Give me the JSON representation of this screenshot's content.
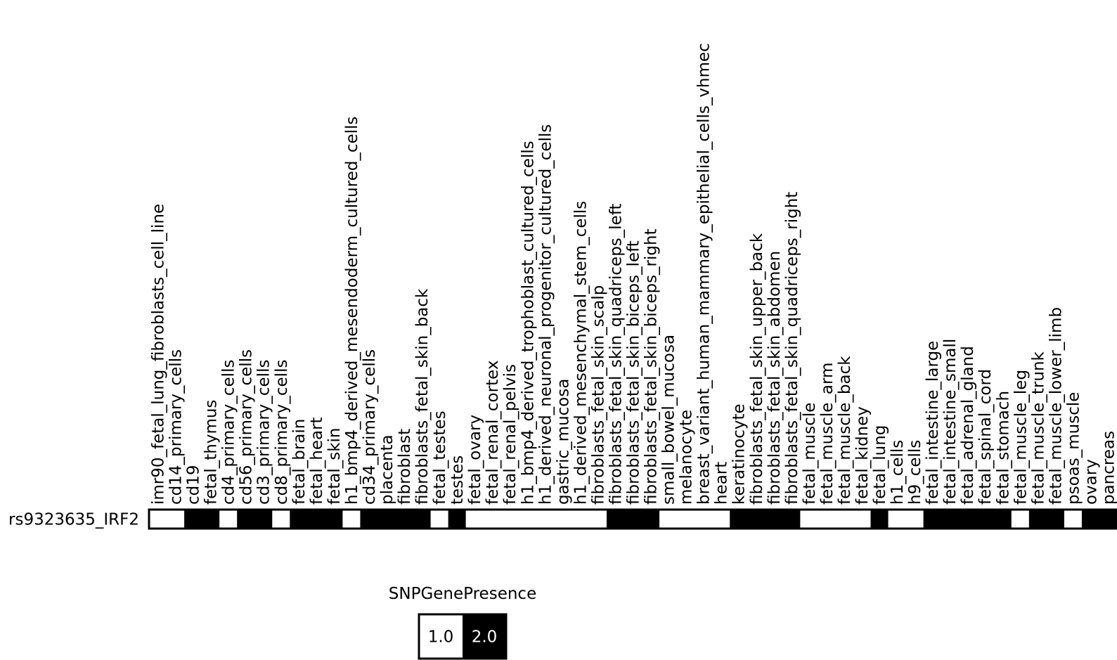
{
  "chart_data": {
    "type": "heatmap",
    "rows": [
      "rs9323635_IRF2"
    ],
    "columns": [
      "imr90_fetal_lung_fibroblasts_cell_line",
      "cd14_primary_cells",
      "cd19",
      "fetal_thymus",
      "cd4_primary_cells",
      "cd56_primary_cells",
      "cd3_primary_cells",
      "cd8_primary_cells",
      "fetal_brain",
      "fetal_heart",
      "fetal_skin",
      "h1_bmp4_derived_mesendoderm_cultured_cells",
      "cd34_primary_cells",
      "placenta",
      "fibroblast",
      "fibroblasts_fetal_skin_back",
      "fetal_testes",
      "testes",
      "fetal_ovary",
      "fetal_renal_cortex",
      "fetal_renal_pelvis",
      "h1_bmp4_derived_trophoblast_cultured_cells",
      "h1_derived_neuronal_progenitor_cultured_cells",
      "gastric_mucosa",
      "h1_derived_mesenchymal_stem_cells",
      "fibroblasts_fetal_skin_scalp",
      "fibroblasts_fetal_skin_quadriceps_left",
      "fibroblasts_fetal_skin_biceps_left",
      "fibroblasts_fetal_skin_biceps_right",
      "small_bowel_mucosa",
      "melanocyte",
      "breast_variant_human_mammary_epithelial_cells_vhmec",
      "heart",
      "keratinocyte",
      "fibroblasts_fetal_skin_upper_back",
      "fibroblasts_fetal_skin_abdomen",
      "fibroblasts_fetal_skin_quadriceps_right",
      "fetal_muscle",
      "fetal_muscle_arm",
      "fetal_muscle_back",
      "fetal_kidney",
      "fetal_lung",
      "h1_cells",
      "h9_cells",
      "fetal_intestine_large",
      "fetal_intestine_small",
      "fetal_adrenal_gland",
      "fetal_spinal_cord",
      "fetal_stomach",
      "fetal_muscle_leg",
      "fetal_muscle_trunk",
      "fetal_muscle_lower_limb",
      "psoas_muscle",
      "ovary",
      "pancreas"
    ],
    "values": [
      [
        1,
        1,
        2,
        2,
        1,
        2,
        2,
        1,
        2,
        2,
        2,
        1,
        2,
        2,
        2,
        2,
        1,
        2,
        1,
        1,
        1,
        1,
        1,
        1,
        1,
        1,
        2,
        2,
        2,
        1,
        1,
        1,
        1,
        2,
        2,
        2,
        2,
        1,
        1,
        1,
        1,
        2,
        1,
        1,
        2,
        2,
        2,
        2,
        2,
        1,
        2,
        2,
        1,
        2,
        2
      ]
    ],
    "legend": {
      "title": "SNPGenePresence",
      "entries": [
        {
          "value": 1,
          "label": "1.0",
          "color": "#ffffff",
          "text_color": "#000000"
        },
        {
          "value": 2,
          "label": "2.0",
          "color": "#000000",
          "text_color": "#ffffff"
        }
      ]
    },
    "colors": {
      "1": "#ffffff",
      "2": "#000000"
    }
  }
}
